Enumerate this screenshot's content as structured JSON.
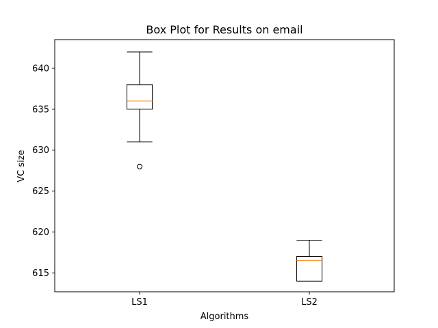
{
  "chart_data": {
    "type": "box",
    "title": "Box Plot for Results on email",
    "xlabel": "Algorithms",
    "ylabel": "VC size",
    "ylim": [
      612.7,
      643.5
    ],
    "yticks": [
      615,
      620,
      625,
      630,
      635,
      640
    ],
    "grid": false,
    "categories": [
      "LS1",
      "LS2"
    ],
    "boxes": [
      {
        "name": "LS1",
        "whisker_low": 631,
        "q1": 635,
        "median": 636,
        "q3": 638,
        "whisker_high": 642,
        "outliers": [
          628
        ]
      },
      {
        "name": "LS2",
        "whisker_low": 614,
        "q1": 614,
        "median": 616.5,
        "q3": 617,
        "whisker_high": 619,
        "outliers": []
      }
    ],
    "colors": {
      "box": "#000000",
      "median": "#ff7f0e"
    }
  }
}
